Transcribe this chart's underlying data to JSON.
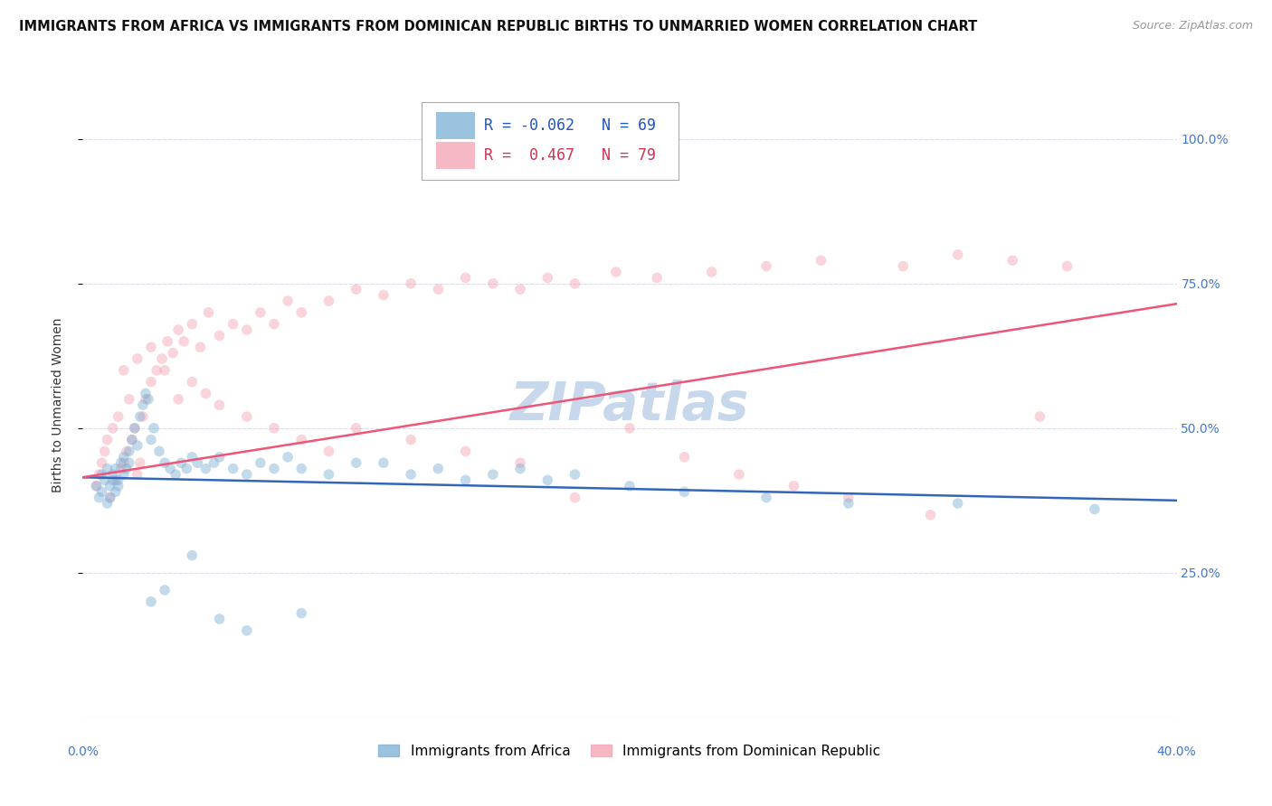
{
  "title": "IMMIGRANTS FROM AFRICA VS IMMIGRANTS FROM DOMINICAN REPUBLIC BIRTHS TO UNMARRIED WOMEN CORRELATION CHART",
  "source": "Source: ZipAtlas.com",
  "ylabel": "Births to Unmarried Women",
  "ytick_labels": [
    "100.0%",
    "75.0%",
    "50.0%",
    "25.0%"
  ],
  "ytick_values": [
    1.0,
    0.75,
    0.5,
    0.25
  ],
  "xlim": [
    0.0,
    0.4
  ],
  "ylim": [
    0.0,
    1.08
  ],
  "blue_R": -0.062,
  "blue_N": 69,
  "pink_R": 0.467,
  "pink_N": 79,
  "blue_color": "#7BAFD4",
  "pink_color": "#F4A0B0",
  "blue_line_color": "#3366BB",
  "pink_line_color": "#EE5577",
  "watermark": "ZIPatlas",
  "legend_label_blue": "Immigrants from Africa",
  "legend_label_pink": "Immigrants from Dominican Republic",
  "blue_line_x0": 0.0,
  "blue_line_y0": 0.415,
  "blue_line_x1": 0.4,
  "blue_line_y1": 0.375,
  "pink_line_x0": 0.0,
  "pink_line_y0": 0.415,
  "pink_line_x1": 0.4,
  "pink_line_y1": 0.715,
  "blue_scatter_x": [
    0.005,
    0.006,
    0.007,
    0.007,
    0.008,
    0.009,
    0.009,
    0.01,
    0.01,
    0.011,
    0.011,
    0.012,
    0.012,
    0.013,
    0.013,
    0.014,
    0.015,
    0.015,
    0.016,
    0.017,
    0.017,
    0.018,
    0.019,
    0.02,
    0.021,
    0.022,
    0.023,
    0.024,
    0.025,
    0.026,
    0.028,
    0.03,
    0.032,
    0.034,
    0.036,
    0.038,
    0.04,
    0.042,
    0.045,
    0.048,
    0.05,
    0.055,
    0.06,
    0.065,
    0.07,
    0.075,
    0.08,
    0.09,
    0.1,
    0.11,
    0.12,
    0.13,
    0.14,
    0.15,
    0.16,
    0.17,
    0.18,
    0.2,
    0.22,
    0.25,
    0.28,
    0.32,
    0.37,
    0.025,
    0.03,
    0.04,
    0.05,
    0.06,
    0.08
  ],
  "blue_scatter_y": [
    0.4,
    0.38,
    0.42,
    0.39,
    0.41,
    0.37,
    0.43,
    0.4,
    0.38,
    0.42,
    0.41,
    0.39,
    0.43,
    0.41,
    0.4,
    0.44,
    0.42,
    0.45,
    0.43,
    0.46,
    0.44,
    0.48,
    0.5,
    0.47,
    0.52,
    0.54,
    0.56,
    0.55,
    0.48,
    0.5,
    0.46,
    0.44,
    0.43,
    0.42,
    0.44,
    0.43,
    0.45,
    0.44,
    0.43,
    0.44,
    0.45,
    0.43,
    0.42,
    0.44,
    0.43,
    0.45,
    0.43,
    0.42,
    0.44,
    0.44,
    0.42,
    0.43,
    0.41,
    0.42,
    0.43,
    0.41,
    0.42,
    0.4,
    0.39,
    0.38,
    0.37,
    0.37,
    0.36,
    0.2,
    0.22,
    0.28,
    0.17,
    0.15,
    0.18
  ],
  "pink_scatter_x": [
    0.005,
    0.006,
    0.007,
    0.008,
    0.009,
    0.01,
    0.011,
    0.012,
    0.013,
    0.014,
    0.015,
    0.016,
    0.017,
    0.018,
    0.019,
    0.02,
    0.021,
    0.022,
    0.023,
    0.025,
    0.027,
    0.029,
    0.031,
    0.033,
    0.035,
    0.037,
    0.04,
    0.043,
    0.046,
    0.05,
    0.055,
    0.06,
    0.065,
    0.07,
    0.075,
    0.08,
    0.09,
    0.1,
    0.11,
    0.12,
    0.13,
    0.14,
    0.15,
    0.16,
    0.17,
    0.18,
    0.195,
    0.21,
    0.23,
    0.25,
    0.27,
    0.3,
    0.32,
    0.34,
    0.36,
    0.015,
    0.02,
    0.025,
    0.03,
    0.035,
    0.04,
    0.045,
    0.05,
    0.06,
    0.07,
    0.08,
    0.09,
    0.1,
    0.12,
    0.14,
    0.16,
    0.18,
    0.2,
    0.22,
    0.24,
    0.26,
    0.28,
    0.31,
    0.35
  ],
  "pink_scatter_y": [
    0.4,
    0.42,
    0.44,
    0.46,
    0.48,
    0.38,
    0.5,
    0.41,
    0.52,
    0.43,
    0.44,
    0.46,
    0.55,
    0.48,
    0.5,
    0.42,
    0.44,
    0.52,
    0.55,
    0.58,
    0.6,
    0.62,
    0.65,
    0.63,
    0.67,
    0.65,
    0.68,
    0.64,
    0.7,
    0.66,
    0.68,
    0.67,
    0.7,
    0.68,
    0.72,
    0.7,
    0.72,
    0.74,
    0.73,
    0.75,
    0.74,
    0.76,
    0.75,
    0.74,
    0.76,
    0.75,
    0.77,
    0.76,
    0.77,
    0.78,
    0.79,
    0.78,
    0.8,
    0.79,
    0.78,
    0.6,
    0.62,
    0.64,
    0.6,
    0.55,
    0.58,
    0.56,
    0.54,
    0.52,
    0.5,
    0.48,
    0.46,
    0.5,
    0.48,
    0.46,
    0.44,
    0.38,
    0.5,
    0.45,
    0.42,
    0.4,
    0.38,
    0.35,
    0.52
  ],
  "grid_color": "#DDDDEE",
  "background_color": "#FFFFFF",
  "title_fontsize": 10.5,
  "source_fontsize": 9,
  "ylabel_fontsize": 10,
  "tick_fontsize": 10,
  "legend_fontsize": 11,
  "watermark_fontsize": 42,
  "watermark_color": "#C8D8EC",
  "marker_size": 70,
  "marker_alpha": 0.45,
  "line_width": 1.8
}
